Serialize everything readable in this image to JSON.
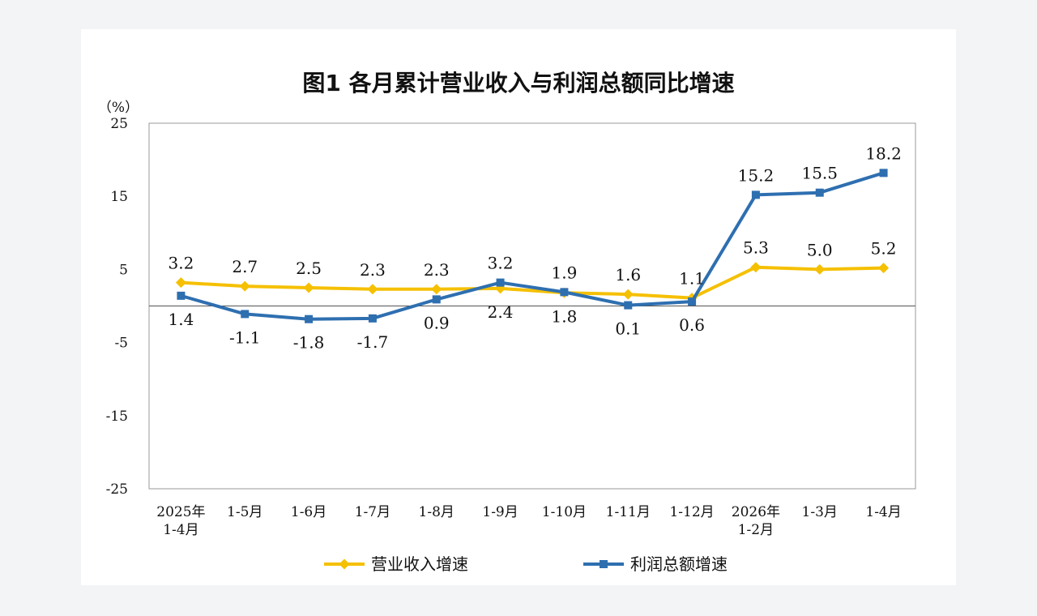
{
  "chart_data": {
    "type": "line",
    "title": "图1  各月累计营业收入与利润总额同比增速",
    "ylabel": "（%）",
    "xlabel": "",
    "ylim": [
      -25,
      25
    ],
    "yticks": [
      25,
      15,
      5,
      -5,
      -15,
      -25
    ],
    "categories": [
      [
        "2025年",
        "1-4月"
      ],
      [
        "1-5月"
      ],
      [
        "1-6月"
      ],
      [
        "1-7月"
      ],
      [
        "1-8月"
      ],
      [
        "1-9月"
      ],
      [
        "1-10月"
      ],
      [
        "1-11月"
      ],
      [
        "1-12月"
      ],
      [
        "2026年",
        "1-2月"
      ],
      [
        "1-3月"
      ],
      [
        "1-4月"
      ]
    ],
    "series": [
      {
        "name": "营业收入增速",
        "color": "#f5c000",
        "marker": "diamond",
        "values": [
          3.2,
          2.7,
          2.5,
          2.3,
          2.3,
          2.4,
          1.8,
          1.6,
          1.1,
          5.3,
          5.0,
          5.2
        ],
        "labels": [
          "3.2",
          "2.7",
          "2.5",
          "2.3",
          "2.3",
          "2.4",
          "1.8",
          "1.6",
          "1.1",
          "5.3",
          "5.0",
          "5.2"
        ],
        "label_position": [
          "above",
          "above",
          "above",
          "above",
          "above",
          "below",
          "below",
          "above",
          "above",
          "above",
          "above",
          "above"
        ]
      },
      {
        "name": "利润总额增速",
        "color": "#2e6fb0",
        "marker": "square",
        "values": [
          1.4,
          -1.1,
          -1.8,
          -1.7,
          0.9,
          3.2,
          1.9,
          0.1,
          0.6,
          15.2,
          15.5,
          18.2
        ],
        "labels": [
          "1.4",
          "-1.1",
          "-1.8",
          "-1.7",
          "0.9",
          "3.2",
          "1.9",
          "0.1",
          "0.6",
          "15.2",
          "15.5",
          "18.2"
        ],
        "label_position": [
          "below",
          "below",
          "below",
          "below",
          "below",
          "above",
          "above",
          "below",
          "below",
          "above",
          "above",
          "above"
        ]
      }
    ],
    "legend_position": "bottom",
    "grid": false
  }
}
